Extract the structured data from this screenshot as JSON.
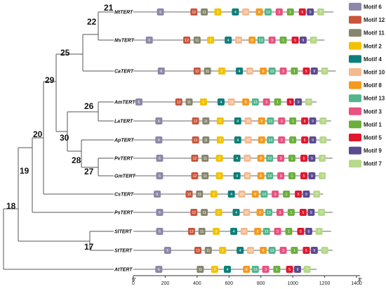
{
  "motifs": [
    {
      "id": 6,
      "name": "Motif 6",
      "color": "#8C88A8"
    },
    {
      "id": 12,
      "name": "Motif 12",
      "color": "#C8553A"
    },
    {
      "id": 11,
      "name": "Motif 11",
      "color": "#86866E"
    },
    {
      "id": 2,
      "name": "Motif 2",
      "color": "#F2C200"
    },
    {
      "id": 4,
      "name": "Motif 4",
      "color": "#0D7F7A"
    },
    {
      "id": 10,
      "name": "Motif 10",
      "color": "#F4BA8E"
    },
    {
      "id": 8,
      "name": "Motif 8",
      "color": "#F49A1E"
    },
    {
      "id": 13,
      "name": "Motif 13",
      "color": "#52B58C"
    },
    {
      "id": 3,
      "name": "Motif 3",
      "color": "#E9517E"
    },
    {
      "id": 1,
      "name": "Motif 1",
      "color": "#6BAF3C"
    },
    {
      "id": 5,
      "name": "Motif 5",
      "color": "#E0182E"
    },
    {
      "id": 9,
      "name": "Motif 9",
      "color": "#5A4A90"
    },
    {
      "id": 7,
      "name": "Motif 7",
      "color": "#B6D98A"
    }
  ],
  "axis": {
    "start_label": "5'",
    "end_label": "3'",
    "ticks": [
      0,
      200,
      400,
      600,
      800,
      1000,
      1200,
      1400
    ],
    "max": 1400
  },
  "genes": [
    {
      "name": "MtTERT",
      "length": 1255,
      "motifs": [
        [
          6,
          170
        ],
        [
          12,
          380
        ],
        [
          11,
          445
        ],
        [
          2,
          530
        ],
        [
          4,
          640
        ],
        [
          10,
          705
        ],
        [
          8,
          790
        ],
        [
          13,
          845
        ],
        [
          3,
          915
        ],
        [
          1,
          985
        ],
        [
          5,
          1060
        ],
        [
          9,
          1110
        ],
        [
          7,
          1175
        ]
      ]
    },
    {
      "name": "MsTERT",
      "length": 1200,
      "motifs": [
        [
          6,
          100
        ],
        [
          12,
          335
        ],
        [
          11,
          400
        ],
        [
          2,
          485
        ],
        [
          4,
          595
        ],
        [
          10,
          660
        ],
        [
          8,
          745
        ],
        [
          13,
          800
        ],
        [
          3,
          870
        ],
        [
          1,
          940
        ],
        [
          5,
          1015
        ],
        [
          9,
          1065
        ],
        [
          7,
          1130
        ]
      ]
    },
    {
      "name": "CaTERT",
      "length": 1270,
      "motifs": [
        [
          6,
          175
        ],
        [
          12,
          400
        ],
        [
          11,
          465
        ],
        [
          2,
          555
        ],
        [
          4,
          665
        ],
        [
          10,
          730
        ],
        [
          8,
          815
        ],
        [
          13,
          870
        ],
        [
          3,
          940
        ],
        [
          1,
          1010
        ],
        [
          5,
          1085
        ],
        [
          9,
          1135
        ],
        [
          7,
          1200
        ]
      ]
    },
    {
      "name": "AmTERT",
      "length": 1150,
      "motifs": [
        [
          6,
          35
        ],
        [
          12,
          285
        ],
        [
          11,
          350
        ],
        [
          2,
          440
        ],
        [
          4,
          550
        ],
        [
          10,
          615
        ],
        [
          8,
          705
        ],
        [
          13,
          765
        ],
        [
          3,
          835
        ],
        [
          1,
          905
        ],
        [
          5,
          985
        ],
        [
          9,
          1035
        ],
        [
          7,
          1100
        ]
      ]
    },
    {
      "name": "LaTERT",
      "length": 1240,
      "motifs": [
        [
          6,
          160
        ],
        [
          12,
          390
        ],
        [
          11,
          455
        ],
        [
          2,
          545
        ],
        [
          4,
          655
        ],
        [
          10,
          720
        ],
        [
          8,
          805
        ],
        [
          13,
          860
        ],
        [
          3,
          930
        ],
        [
          1,
          1000
        ],
        [
          5,
          1075
        ],
        [
          9,
          1125
        ],
        [
          7,
          1190
        ]
      ]
    },
    {
      "name": "ApTERT",
      "length": 1240,
      "motifs": [
        [
          6,
          160
        ],
        [
          12,
          390
        ],
        [
          11,
          455
        ],
        [
          2,
          545
        ],
        [
          4,
          655
        ],
        [
          10,
          720
        ],
        [
          8,
          805
        ],
        [
          13,
          860
        ],
        [
          3,
          930
        ],
        [
          1,
          1000
        ],
        [
          5,
          1075
        ],
        [
          9,
          1125
        ],
        [
          7,
          1190
        ]
      ]
    },
    {
      "name": "PvTERT",
      "length": 1250,
      "motifs": [
        [
          6,
          165
        ],
        [
          12,
          385
        ],
        [
          11,
          450
        ],
        [
          2,
          540
        ],
        [
          4,
          650
        ],
        [
          10,
          715
        ],
        [
          8,
          800
        ],
        [
          13,
          855
        ],
        [
          3,
          925
        ],
        [
          1,
          995
        ],
        [
          5,
          1070
        ],
        [
          9,
          1120
        ],
        [
          7,
          1185
        ]
      ]
    },
    {
      "name": "GmTERT",
      "length": 1180,
      "motifs": [
        [
          6,
          165
        ],
        [
          12,
          385
        ],
        [
          11,
          450
        ],
        [
          2,
          540
        ],
        [
          4,
          650
        ],
        [
          10,
          715
        ],
        [
          8,
          800
        ],
        [
          13,
          855
        ],
        [
          3,
          925
        ],
        [
          1,
          995
        ],
        [
          5,
          1070
        ],
        [
          9,
          1120
        ],
        [
          7,
          1185
        ]
      ]
    },
    {
      "name": "CsTERT",
      "length": 1190,
      "motifs": [
        [
          6,
          150
        ],
        [
          12,
          350
        ],
        [
          11,
          415
        ],
        [
          2,
          505
        ],
        [
          4,
          615
        ],
        [
          10,
          680
        ],
        [
          8,
          765
        ],
        [
          13,
          820
        ],
        [
          3,
          890
        ],
        [
          1,
          960
        ],
        [
          5,
          1035
        ],
        [
          9,
          1085
        ],
        [
          7,
          1150
        ]
      ]
    },
    {
      "name": "PsTERT",
      "length": 1250,
      "motifs": [
        [
          6,
          165
        ],
        [
          12,
          380
        ],
        [
          11,
          445
        ],
        [
          2,
          535
        ],
        [
          4,
          645
        ],
        [
          10,
          710
        ],
        [
          8,
          795
        ],
        [
          13,
          850
        ],
        [
          3,
          920
        ],
        [
          1,
          990
        ],
        [
          5,
          1065
        ],
        [
          9,
          1115
        ],
        [
          7,
          1180
        ]
      ]
    },
    {
      "name": "SlTERT",
      "length": 1240,
      "motifs": [
        [
          6,
          165
        ],
        [
          12,
          365
        ],
        [
          11,
          430
        ],
        [
          2,
          520
        ],
        [
          4,
          630
        ],
        [
          10,
          695
        ],
        [
          8,
          780
        ],
        [
          13,
          835
        ],
        [
          3,
          905
        ],
        [
          1,
          975
        ],
        [
          5,
          1050
        ],
        [
          9,
          1100
        ],
        [
          7,
          1165
        ]
      ]
    },
    {
      "name": "StTERT",
      "length": 1250,
      "motifs": [
        [
          6,
          215
        ],
        [
          12,
          405
        ],
        [
          11,
          470
        ],
        [
          2,
          560
        ],
        [
          4,
          670
        ],
        [
          10,
          735
        ],
        [
          8,
          815
        ],
        [
          13,
          870
        ],
        [
          3,
          940
        ],
        [
          1,
          1010
        ],
        [
          5,
          1085
        ],
        [
          9,
          1135
        ],
        [
          7,
          1200
        ]
      ]
    },
    {
      "name": "AtTERT",
      "length": 1150,
      "motifs": [
        [
          6,
          160
        ],
        [
          11,
          420
        ],
        [
          2,
          510
        ],
        [
          4,
          590
        ],
        [
          8,
          710
        ],
        [
          13,
          765
        ],
        [
          3,
          830
        ],
        [
          1,
          900
        ],
        [
          5,
          980
        ],
        [
          9,
          1030
        ],
        [
          7,
          1090
        ]
      ]
    }
  ],
  "tree_nodes": [
    "21",
    "22",
    "25",
    "29",
    "26",
    "30",
    "28",
    "27",
    "20",
    "19",
    "18",
    "17"
  ]
}
